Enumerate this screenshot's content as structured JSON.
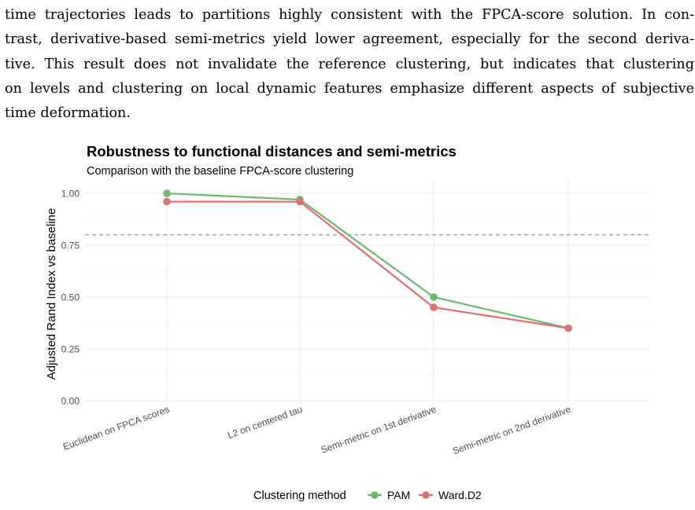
{
  "paragraph": {
    "lines": [
      "time trajectories leads to partitions highly consistent with the FPCA-score solution. In con-",
      "trast, derivative-based semi-metrics yield lower agreement, especially for the second deriva-",
      "tive. This result does not invalidate the reference clustering, but indicates that clustering",
      "on levels and clustering on local dynamic features emphasize different aspects of subjective",
      "time deformation."
    ]
  },
  "chart_data": {
    "type": "line",
    "title": "Robustness to functional distances and semi-metrics",
    "subtitle": "Comparison with the baseline FPCA-score clustering",
    "xlabel": "",
    "ylabel": "Adjusted Rand Index vs baseline",
    "categories": [
      "Euclidean on FPCA scores",
      "L2 on centered tau",
      "Semi-metric on 1st derivative",
      "Semi-metric on 2nd derivative"
    ],
    "series": [
      {
        "name": "PAM",
        "color": "#6db96d",
        "values": [
          1.0,
          0.97,
          0.5,
          0.35
        ]
      },
      {
        "name": "Ward.D2",
        "color": "#e07070",
        "values": [
          0.96,
          0.96,
          0.45,
          0.35
        ]
      }
    ],
    "ylim": [
      0,
      1
    ],
    "yticks": [
      "0.00",
      "0.25",
      "0.50",
      "0.75",
      "1.00"
    ],
    "reference_line": 0.8,
    "grid": true,
    "legend": {
      "title": "Clustering method",
      "placement": "bottom"
    }
  }
}
